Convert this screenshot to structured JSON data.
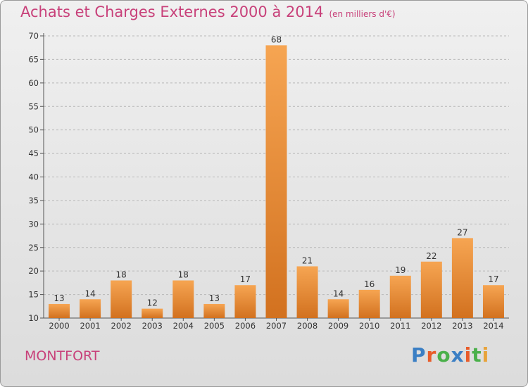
{
  "header": {
    "title": "Achats et Charges Externes 2000 à 2014",
    "unit": "(en milliers d'€)"
  },
  "footer": {
    "commune": "MONTFORT",
    "logo_text": "Proxiti",
    "logo_colors": [
      "#3b7fc4",
      "#e85c2a",
      "#4ab04a",
      "#3b7fc4",
      "#e85c2a",
      "#4ab04a",
      "#e8a33a"
    ]
  },
  "colors": {
    "title": "#c8417a",
    "bar_light": "#f6a552",
    "bar_dark": "#d2711f"
  },
  "chart_data": {
    "type": "bar",
    "title": "Achats et Charges Externes 2000 à 2014",
    "subtitle": "(en milliers d'€)",
    "xlabel": "",
    "ylabel": "",
    "categories": [
      "2000",
      "2001",
      "2002",
      "2003",
      "2004",
      "2005",
      "2006",
      "2007",
      "2008",
      "2009",
      "2010",
      "2011",
      "2012",
      "2013",
      "2014"
    ],
    "values": [
      13,
      14,
      18,
      12,
      18,
      13,
      17,
      68,
      21,
      14,
      16,
      19,
      22,
      27,
      17
    ],
    "ylim": [
      10,
      70
    ],
    "yticks": [
      10,
      15,
      20,
      25,
      30,
      35,
      40,
      45,
      50,
      55,
      60,
      65,
      70
    ],
    "grid": "horizontal-dashed",
    "data_labels": true
  }
}
